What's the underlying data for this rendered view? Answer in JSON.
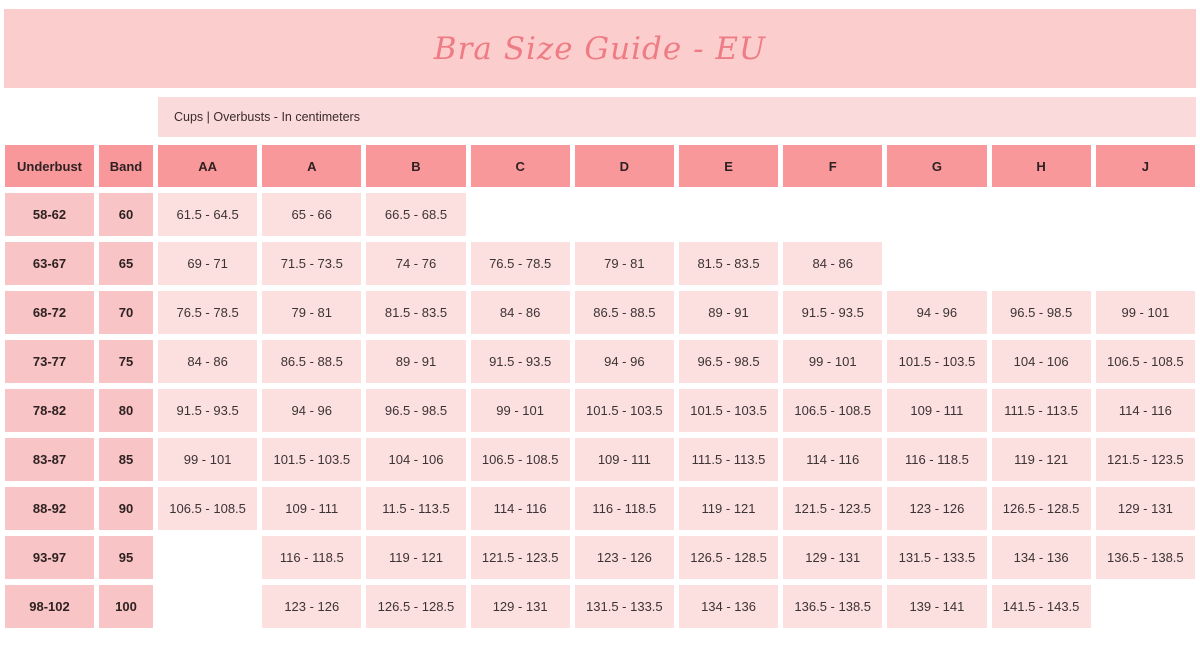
{
  "title": "Bra Size Guide - EU",
  "subtitle": "Cups | Overbusts - In centimeters",
  "colors": {
    "banner_bg": "#fccdcd",
    "title_text": "#ed7c84",
    "subband_bg": "#fbdadb",
    "header_cell_bg": "#f8989b",
    "underbust_band_cell_bg": "#f9c4c5",
    "cup_cell_bg": "#fcdfdf",
    "dark_text": "#2e2122"
  },
  "table": {
    "headers": [
      "Underbust",
      "Band",
      "AA",
      "A",
      "B",
      "C",
      "D",
      "E",
      "F",
      "G",
      "H",
      "J"
    ],
    "rows": [
      [
        "58-62",
        "60",
        "61.5 - 64.5",
        "65 - 66",
        "66.5 - 68.5",
        "",
        "",
        "",
        "",
        "",
        "",
        ""
      ],
      [
        "63-67",
        "65",
        "69 - 71",
        "71.5 - 73.5",
        "74 - 76",
        "76.5 - 78.5",
        "79 - 81",
        "81.5 - 83.5",
        "84 - 86",
        "",
        "",
        ""
      ],
      [
        "68-72",
        "70",
        "76.5 - 78.5",
        "79 - 81",
        "81.5 - 83.5",
        "84 - 86",
        "86.5 - 88.5",
        "89 - 91",
        "91.5 - 93.5",
        "94 - 96",
        "96.5 - 98.5",
        "99 - 101"
      ],
      [
        "73-77",
        "75",
        "84 - 86",
        "86.5 - 88.5",
        "89 - 91",
        "91.5 - 93.5",
        "94 - 96",
        "96.5 - 98.5",
        "99 - 101",
        "101.5 - 103.5",
        "104 - 106",
        "106.5 - 108.5"
      ],
      [
        "78-82",
        "80",
        "91.5 - 93.5",
        "94 - 96",
        "96.5 - 98.5",
        "99 - 101",
        "101.5 - 103.5",
        "101.5 - 103.5",
        "106.5 - 108.5",
        "109 - 111",
        "111.5 - 113.5",
        "114 - 116"
      ],
      [
        "83-87",
        "85",
        "99 - 101",
        "101.5 - 103.5",
        "104 - 106",
        "106.5 - 108.5",
        "109 - 111",
        "111.5 - 113.5",
        "114 - 116",
        "116 - 118.5",
        "119 - 121",
        "121.5 - 123.5"
      ],
      [
        "88-92",
        "90",
        "106.5 - 108.5",
        "109 - 111",
        "11.5 - 113.5",
        "114 - 116",
        "116 - 118.5",
        "119 - 121",
        "121.5 - 123.5",
        "123 - 126",
        "126.5 - 128.5",
        "129 - 131"
      ],
      [
        "93-97",
        "95",
        "",
        "116 - 118.5",
        "119 - 121",
        "121.5 - 123.5",
        "123 - 126",
        "126.5 - 128.5",
        "129 - 131",
        "131.5 - 133.5",
        "134 - 136",
        "136.5 - 138.5"
      ],
      [
        "98-102",
        "100",
        "",
        "123 - 126",
        "126.5 - 128.5",
        "129 - 131",
        "131.5 - 133.5",
        "134 - 136",
        "136.5 - 138.5",
        "139 - 141",
        "141.5 - 143.5",
        ""
      ]
    ]
  }
}
